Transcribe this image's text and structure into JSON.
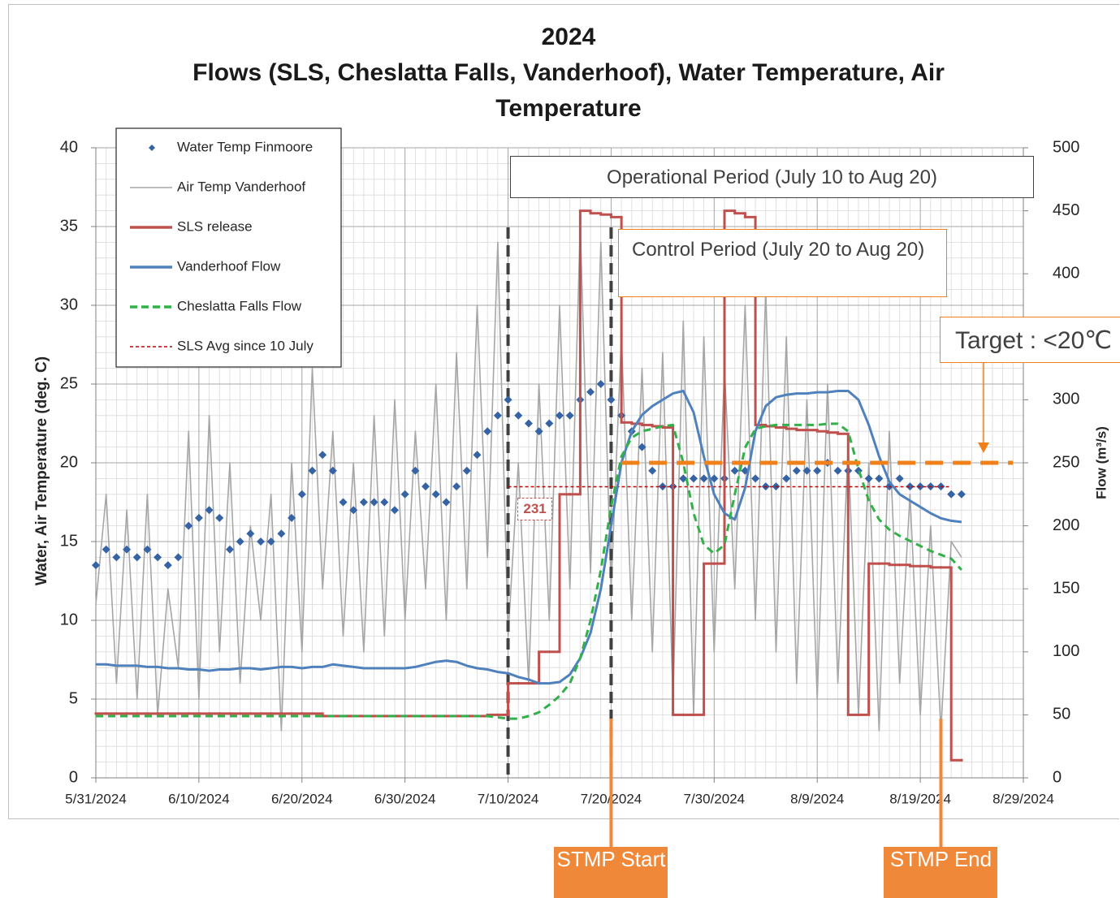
{
  "chart_data": {
    "type": "line",
    "title": "2024",
    "subtitle": "Flows (SLS, Cheslatta Falls, Vanderhoof), Water Temperature, Air Temperature",
    "y_label": "Water, Air Temperature (deg. C)",
    "y2_label": "Flow (m³/s)",
    "xlim": [
      "5/31/2024",
      "8/29/2024"
    ],
    "xticks": [
      "5/31/2024",
      "6/10/2024",
      "6/20/2024",
      "6/30/2024",
      "7/10/2024",
      "7/20/2024",
      "7/30/2024",
      "8/9/2024",
      "8/19/2024",
      "8/29/2024"
    ],
    "ylim": [
      0,
      40
    ],
    "yticks": [
      0,
      5,
      10,
      15,
      20,
      25,
      30,
      35,
      40
    ],
    "y2lim": [
      0,
      500
    ],
    "y2ticks": [
      0,
      50,
      100,
      150,
      200,
      250,
      300,
      350,
      400,
      450,
      500
    ],
    "grid": true,
    "minor_grid": true,
    "legend": "upper left",
    "x": [
      "5/31/2024",
      "6/1/2024",
      "6/2/2024",
      "6/3/2024",
      "6/4/2024",
      "6/5/2024",
      "6/6/2024",
      "6/7/2024",
      "6/8/2024",
      "6/9/2024",
      "6/10/2024",
      "6/11/2024",
      "6/12/2024",
      "6/13/2024",
      "6/14/2024",
      "6/15/2024",
      "6/16/2024",
      "6/17/2024",
      "6/18/2024",
      "6/19/2024",
      "6/20/2024",
      "6/21/2024",
      "6/22/2024",
      "6/23/2024",
      "6/24/2024",
      "6/25/2024",
      "6/26/2024",
      "6/27/2024",
      "6/28/2024",
      "6/29/2024",
      "6/30/2024",
      "7/1/2024",
      "7/2/2024",
      "7/3/2024",
      "7/4/2024",
      "7/5/2024",
      "7/6/2024",
      "7/7/2024",
      "7/8/2024",
      "7/9/2024",
      "7/10/2024",
      "7/11/2024",
      "7/12/2024",
      "7/13/2024",
      "7/14/2024",
      "7/15/2024",
      "7/16/2024",
      "7/17/2024",
      "7/18/2024",
      "7/19/2024",
      "7/20/2024",
      "7/21/2024",
      "7/22/2024",
      "7/23/2024",
      "7/24/2024",
      "7/25/2024",
      "7/26/2024",
      "7/27/2024",
      "7/28/2024",
      "7/29/2024",
      "7/30/2024",
      "7/31/2024",
      "8/1/2024",
      "8/2/2024",
      "8/3/2024",
      "8/4/2024",
      "8/5/2024",
      "8/6/2024",
      "8/7/2024",
      "8/8/2024",
      "8/9/2024",
      "8/10/2024",
      "8/11/2024",
      "8/12/2024",
      "8/13/2024",
      "8/14/2024",
      "8/15/2024",
      "8/16/2024",
      "8/17/2024",
      "8/18/2024",
      "8/19/2024",
      "8/20/2024",
      "8/21/2024",
      "8/22/2024",
      "8/23/2024"
    ],
    "series": [
      {
        "name": "Water Temp Finmoore",
        "color": "#3563a3",
        "style": "markers",
        "axis": "y",
        "values": [
          13.5,
          14.5,
          14,
          14.5,
          14,
          14.5,
          14,
          13.5,
          14,
          16,
          16.5,
          17,
          16.5,
          14.5,
          15,
          15.5,
          15,
          15,
          15.5,
          16.5,
          18,
          19.5,
          20.5,
          19.5,
          17.5,
          17,
          17.5,
          17.5,
          17.5,
          17,
          18,
          19.5,
          18.5,
          18,
          17.5,
          18.5,
          19.5,
          20.5,
          22,
          23,
          24,
          23,
          22.5,
          22,
          22.5,
          23,
          23,
          24,
          24.5,
          25,
          24,
          23,
          22,
          21,
          19.5,
          18.5,
          18.5,
          19,
          19,
          19,
          19,
          19,
          19.5,
          19.5,
          19,
          18.5,
          18.5,
          19,
          19.5,
          19.5,
          19.5,
          20,
          19.5,
          19.5,
          19.5,
          19,
          19,
          18.5,
          19,
          18.5,
          18.5,
          18.5,
          18.5,
          18,
          18
        ]
      },
      {
        "name": "Air Temp Vanderhoof",
        "color": "#a6a6a6",
        "style": "line",
        "axis": "y",
        "values": [
          11,
          18,
          6,
          17,
          5,
          18,
          4,
          12,
          7,
          22,
          5,
          23,
          8,
          20,
          6,
          16,
          10,
          18,
          3,
          20,
          8,
          26,
          12,
          22,
          9,
          20,
          8,
          23,
          9,
          24,
          10,
          22,
          12,
          25,
          10,
          27,
          12,
          30,
          14,
          34,
          9,
          20,
          6,
          25,
          10,
          30,
          12,
          35,
          13,
          34,
          12,
          28,
          10,
          26,
          8,
          27,
          5,
          29,
          4,
          28,
          8,
          26,
          12,
          30,
          10,
          31,
          8,
          28,
          6,
          24,
          5,
          25,
          6,
          21,
          4,
          20,
          3,
          22,
          6,
          18,
          4,
          16,
          3,
          15,
          14
        ]
      },
      {
        "name": "SLS release",
        "color": "#c0504d",
        "style": "step",
        "axis": "y2",
        "values": [
          51,
          51,
          51,
          51,
          51,
          51,
          51,
          51,
          51,
          51,
          51,
          51,
          51,
          51,
          51,
          51,
          51,
          51,
          51,
          51,
          51,
          51,
          49,
          49,
          49,
          49,
          49,
          49,
          49,
          49,
          49,
          49,
          49,
          49,
          49,
          49,
          49,
          49,
          50,
          50,
          75,
          75,
          75,
          100,
          100,
          225,
          225,
          450,
          448,
          447,
          445,
          282,
          281,
          280,
          279,
          278,
          50,
          50,
          50,
          170,
          170,
          450,
          448,
          445,
          280,
          279,
          278,
          277,
          276,
          276,
          275,
          274,
          273,
          50,
          50,
          170,
          170,
          169,
          169,
          168,
          168,
          167,
          167,
          14,
          14
        ]
      },
      {
        "name": "Vanderhoof Flow",
        "color": "#4f81bd",
        "style": "line",
        "axis": "y2",
        "values": [
          90,
          90,
          89,
          89,
          89,
          88,
          88,
          87,
          87,
          86,
          86,
          85,
          86,
          86,
          87,
          87,
          86,
          87,
          88,
          88,
          87,
          88,
          88,
          90,
          89,
          88,
          87,
          87,
          87,
          87,
          87,
          88,
          90,
          92,
          93,
          92,
          89,
          87,
          86,
          84,
          83,
          80,
          78,
          75,
          75,
          76,
          82,
          95,
          115,
          150,
          200,
          250,
          275,
          288,
          295,
          300,
          305,
          307,
          290,
          255,
          225,
          210,
          205,
          230,
          275,
          295,
          302,
          304,
          305,
          305,
          306,
          306,
          307,
          307,
          300,
          280,
          255,
          235,
          225,
          220,
          215,
          210,
          206,
          204,
          203
        ]
      },
      {
        "name": "Cheslatta Falls Flow",
        "color": "#33b04a",
        "style": "dashed",
        "axis": "y2",
        "values": [
          49,
          49,
          49,
          49,
          49,
          49,
          49,
          49,
          49,
          49,
          49,
          49,
          49,
          49,
          49,
          49,
          49,
          49,
          49,
          49,
          49,
          49,
          49,
          49,
          49,
          49,
          49,
          49,
          49,
          49,
          49,
          49,
          49,
          49,
          49,
          49,
          49,
          49,
          49,
          48,
          47,
          47,
          49,
          52,
          58,
          65,
          75,
          95,
          125,
          165,
          215,
          255,
          270,
          275,
          277,
          279,
          280,
          250,
          210,
          185,
          178,
          185,
          225,
          262,
          277,
          279,
          280,
          280,
          280,
          280,
          280,
          281,
          281,
          275,
          245,
          220,
          205,
          197,
          192,
          188,
          184,
          180,
          177,
          174,
          165
        ]
      }
    ],
    "sls_avg": {
      "name": "SLS Avg since 10 July",
      "color": "#c00000",
      "value": 231,
      "from": "7/10/2024",
      "to": "8/22/2024"
    },
    "period_lines": [
      "7/10/2024",
      "7/20/2024"
    ],
    "operational_period": "Operational Period (July 10 to Aug 20)",
    "control_period": "Control Period (July 20 to Aug 20)",
    "target": {
      "label": "Target : <20℃",
      "value": 20,
      "from": "7/21/2024",
      "to": "8/28/2024",
      "color": "#f08019"
    },
    "stmp": [
      {
        "label": "STMP Start",
        "date": "7/20/2024"
      },
      {
        "label": "STMP End",
        "date": "8/21/2024"
      }
    ]
  }
}
